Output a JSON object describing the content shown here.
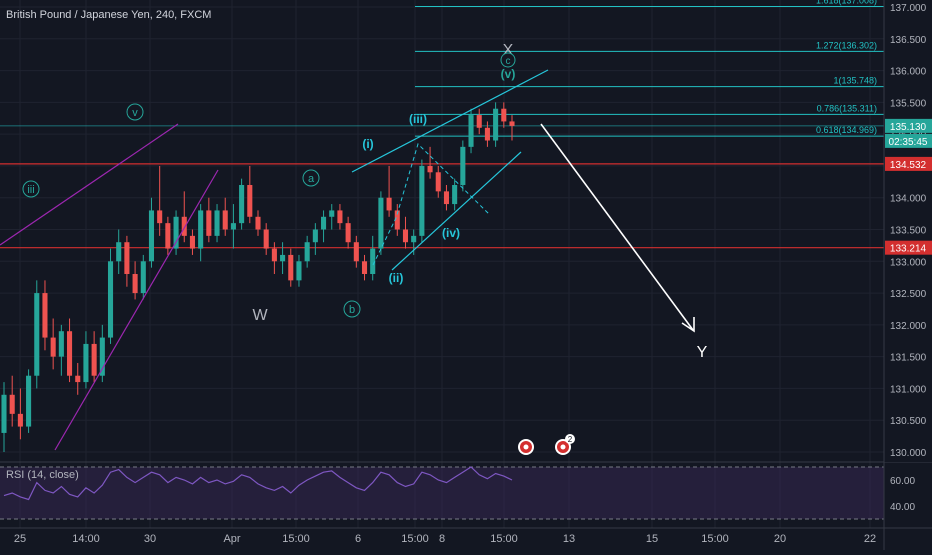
{
  "header": {
    "title": "British Pound / Japanese Yen, 240, FXCM"
  },
  "colors": {
    "background": "#131722",
    "grid": "#1f2330",
    "up": "#26a69a",
    "down": "#ef5350",
    "fib": "#22c1c3",
    "horizontal": "#d32f2f",
    "channel_purple": "#9c27b0",
    "channel_cyan": "#26c6da",
    "rsi_line": "#7e57c2",
    "rsi_band": "#3b2a5a",
    "text": "#b2b5be"
  },
  "price_axis": {
    "ticks": [
      "137.000",
      "136.500",
      "136.000",
      "135.500",
      "135.000",
      "134.500",
      "134.000",
      "133.500",
      "133.000",
      "132.500",
      "132.000",
      "131.500",
      "131.000",
      "130.500",
      "130.000"
    ],
    "last_price": "135.130",
    "countdown": "02:35:45",
    "level_a": "134.532",
    "level_b": "133.214"
  },
  "time_axis": {
    "ticks": [
      "25",
      "14:00",
      "30",
      "Apr",
      "15:00",
      "6",
      "15:00",
      "8",
      "15:00",
      "13",
      "15",
      "15:00",
      "20",
      "22"
    ]
  },
  "fib_levels": [
    {
      "label": "1.618(137.008)",
      "price": 137.008
    },
    {
      "label": "1.272(136.302)",
      "price": 136.302
    },
    {
      "label": "1(135.748)",
      "price": 135.748
    },
    {
      "label": "0.786(135.311)",
      "price": 135.311
    },
    {
      "label": "0.618(134.969)",
      "price": 134.969
    }
  ],
  "wave_labels": {
    "iii": "iii",
    "v": "v",
    "W": "W",
    "a": "a",
    "b": "b",
    "i": "(i)",
    "ii": "(ii)",
    "iii_small": "(iii)",
    "iv": "(iv)",
    "v_small": "(v)",
    "c": "c",
    "X": "X",
    "Y": "Y"
  },
  "rsi": {
    "label": "RSI (14, close)",
    "ticks": [
      "60.00",
      "40.00"
    ],
    "value": 60
  },
  "events": {
    "badge_count": "2"
  },
  "chart_data": {
    "type": "candlestick",
    "title": "British Pound / Japanese Yen, 240, FXCM",
    "ylim": [
      129.9,
      137.15
    ],
    "candles": [
      [
        130.3,
        131.1,
        130.0,
        130.9
      ],
      [
        130.9,
        131.2,
        130.4,
        130.6
      ],
      [
        130.6,
        131.0,
        130.2,
        130.4
      ],
      [
        130.4,
        131.3,
        130.3,
        131.2
      ],
      [
        131.2,
        132.7,
        131.0,
        132.5
      ],
      [
        132.5,
        132.7,
        131.6,
        131.8
      ],
      [
        131.8,
        132.1,
        131.3,
        131.5
      ],
      [
        131.5,
        132.0,
        131.2,
        131.9
      ],
      [
        131.9,
        132.1,
        131.1,
        131.2
      ],
      [
        131.2,
        131.4,
        130.9,
        131.1
      ],
      [
        131.1,
        131.9,
        131.0,
        131.7
      ],
      [
        131.7,
        131.9,
        131.1,
        131.2
      ],
      [
        131.2,
        132.0,
        131.1,
        131.8
      ],
      [
        131.8,
        133.2,
        131.7,
        133.0
      ],
      [
        133.0,
        133.5,
        132.8,
        133.3
      ],
      [
        133.3,
        133.4,
        132.6,
        132.8
      ],
      [
        132.8,
        133.0,
        132.4,
        132.5
      ],
      [
        132.5,
        133.1,
        132.4,
        133.0
      ],
      [
        133.0,
        134.0,
        132.9,
        133.8
      ],
      [
        133.8,
        134.5,
        133.4,
        133.6
      ],
      [
        133.6,
        133.7,
        133.1,
        133.2
      ],
      [
        133.2,
        133.8,
        133.1,
        133.7
      ],
      [
        133.7,
        134.1,
        133.3,
        133.4
      ],
      [
        133.4,
        133.5,
        133.1,
        133.2
      ],
      [
        133.2,
        133.9,
        133.0,
        133.8
      ],
      [
        133.8,
        134.0,
        133.3,
        133.4
      ],
      [
        133.4,
        133.9,
        133.3,
        133.8
      ],
      [
        133.8,
        134.0,
        133.4,
        133.5
      ],
      [
        133.5,
        133.9,
        133.2,
        133.6
      ],
      [
        133.6,
        134.3,
        133.5,
        134.2
      ],
      [
        134.2,
        134.5,
        133.6,
        133.7
      ],
      [
        133.7,
        133.8,
        133.4,
        133.5
      ],
      [
        133.5,
        133.6,
        133.1,
        133.2
      ],
      [
        133.2,
        133.3,
        132.8,
        133.0
      ],
      [
        133.0,
        133.3,
        132.8,
        133.1
      ],
      [
        133.1,
        133.2,
        132.6,
        132.7
      ],
      [
        132.7,
        133.1,
        132.6,
        133.0
      ],
      [
        133.0,
        133.4,
        132.9,
        133.3
      ],
      [
        133.3,
        133.6,
        133.1,
        133.5
      ],
      [
        133.5,
        133.8,
        133.3,
        133.7
      ],
      [
        133.7,
        133.9,
        133.5,
        133.8
      ],
      [
        133.8,
        133.9,
        133.5,
        133.6
      ],
      [
        133.6,
        133.7,
        133.2,
        133.3
      ],
      [
        133.3,
        133.4,
        132.9,
        133.0
      ],
      [
        133.0,
        133.1,
        132.7,
        132.8
      ],
      [
        132.8,
        133.4,
        132.7,
        133.2
      ],
      [
        133.2,
        134.1,
        133.1,
        134.0
      ],
      [
        134.0,
        134.5,
        133.7,
        133.8
      ],
      [
        133.8,
        133.9,
        133.4,
        133.5
      ],
      [
        133.5,
        133.7,
        133.2,
        133.3
      ],
      [
        133.3,
        133.5,
        133.1,
        133.4
      ],
      [
        133.4,
        134.6,
        133.3,
        134.5
      ],
      [
        134.5,
        134.8,
        134.3,
        134.4
      ],
      [
        134.4,
        134.5,
        134.0,
        134.1
      ],
      [
        134.1,
        134.2,
        133.8,
        133.9
      ],
      [
        133.9,
        134.3,
        133.8,
        134.2
      ],
      [
        134.2,
        134.9,
        134.1,
        134.8
      ],
      [
        134.8,
        135.4,
        134.7,
        135.3
      ],
      [
        135.3,
        135.4,
        135.0,
        135.1
      ],
      [
        135.1,
        135.2,
        134.8,
        134.9
      ],
      [
        134.9,
        135.5,
        134.8,
        135.4
      ],
      [
        135.4,
        135.5,
        135.1,
        135.2
      ],
      [
        135.2,
        135.3,
        134.9,
        135.13
      ]
    ],
    "horizontal_levels": [
      134.532,
      133.214
    ],
    "projection_target": "Y",
    "rsi_series": [
      48,
      50,
      47,
      45,
      58,
      52,
      50,
      55,
      49,
      47,
      54,
      50,
      56,
      66,
      68,
      62,
      58,
      62,
      66,
      64,
      58,
      62,
      60,
      57,
      62,
      58,
      60,
      57,
      59,
      64,
      62,
      57,
      54,
      52,
      55,
      50,
      56,
      60,
      63,
      66,
      67,
      62,
      58,
      54,
      52,
      58,
      66,
      64,
      58,
      55,
      57,
      66,
      64,
      60,
      58,
      62,
      66,
      70,
      64,
      61,
      65,
      63,
      60
    ]
  }
}
